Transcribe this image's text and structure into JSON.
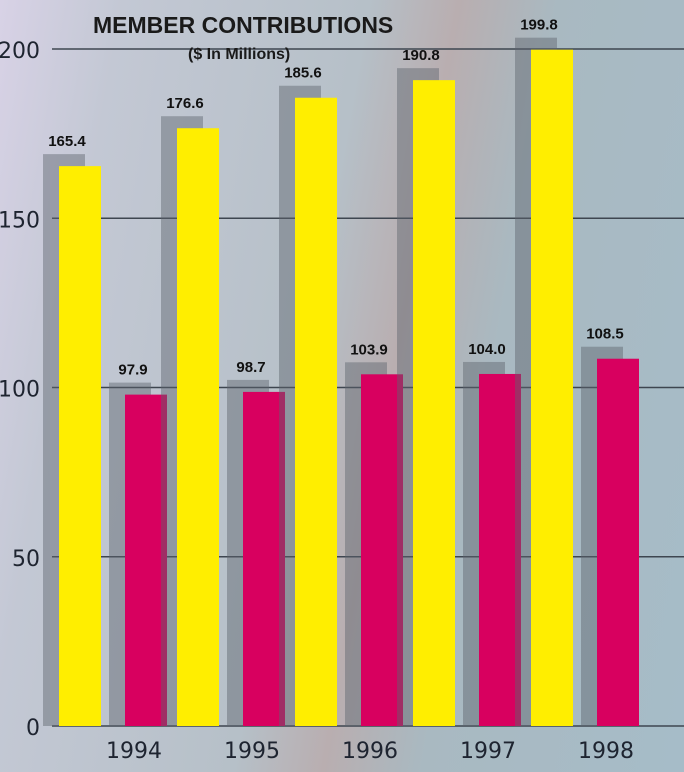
{
  "chart_data": {
    "type": "bar",
    "title": "MEMBER CONTRIBUTIONS",
    "subtitle": "($ In Millions)",
    "categories": [
      "1994",
      "1995",
      "1996",
      "1997",
      "1998"
    ],
    "series": [
      {
        "values": [
          165.4,
          176.6,
          185.6,
          190.8,
          199.8
        ],
        "color": "#ffee00"
      },
      {
        "values": [
          97.9,
          98.7,
          103.9,
          104.0,
          108.5
        ],
        "color": "#d8005f"
      }
    ],
    "ylim": [
      0,
      200
    ],
    "yticks": [
      "0",
      "50",
      "100",
      "150",
      "200"
    ],
    "grid": true,
    "legend": "none"
  }
}
